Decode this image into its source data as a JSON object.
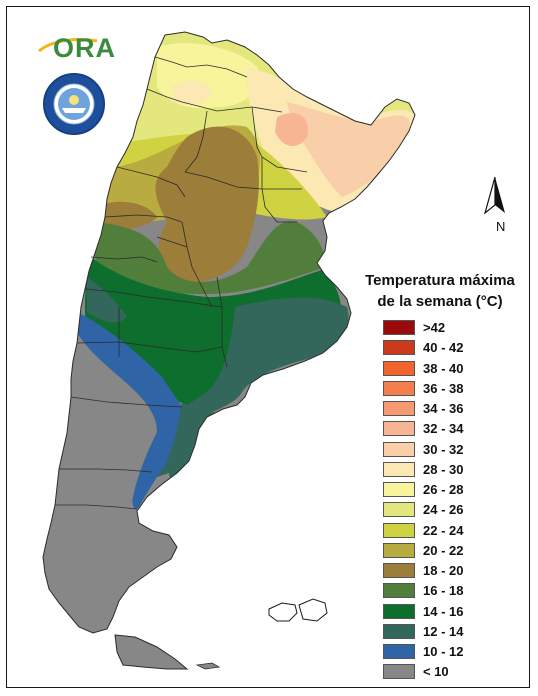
{
  "logo": {
    "name": "ORA",
    "seal_text": "SERVICIO METEOROLÓGICO NACIONAL ARGENTINA"
  },
  "north_arrow": {
    "label": "N"
  },
  "legend": {
    "title_line1": "Temperatura máxima",
    "title_line2": "de la semana (°C)",
    "items": [
      {
        "label": ">42",
        "color": "#9b0a0a"
      },
      {
        "label": "40 - 42",
        "color": "#cc3a1c"
      },
      {
        "label": "38 - 40",
        "color": "#f2642e"
      },
      {
        "label": "36 - 38",
        "color": "#f47e4e"
      },
      {
        "label": "34 - 36",
        "color": "#f59a72"
      },
      {
        "label": "32 - 34",
        "color": "#f8b594"
      },
      {
        "label": "30 - 32",
        "color": "#f8cfa8"
      },
      {
        "label": "28 - 30",
        "color": "#fbe8b3"
      },
      {
        "label": "26 - 28",
        "color": "#f7f49c"
      },
      {
        "label": "24 - 26",
        "color": "#e3e77e"
      },
      {
        "label": "22 - 24",
        "color": "#cfd342"
      },
      {
        "label": "20 - 22",
        "color": "#b8ab3f"
      },
      {
        "label": "18 - 20",
        "color": "#9c7d3a"
      },
      {
        "label": "16 - 18",
        "color": "#517f3b"
      },
      {
        "label": "14 - 16",
        "color": "#0d6e2d"
      },
      {
        "label": "12 - 14",
        "color": "#34675b"
      },
      {
        "label": "10 - 12",
        "color": "#2f64a6"
      },
      {
        "label": "< 10",
        "color": "#878787"
      }
    ]
  },
  "colors": {
    "frame": "#1a1a1a",
    "boundary": "#2b2b2b"
  }
}
